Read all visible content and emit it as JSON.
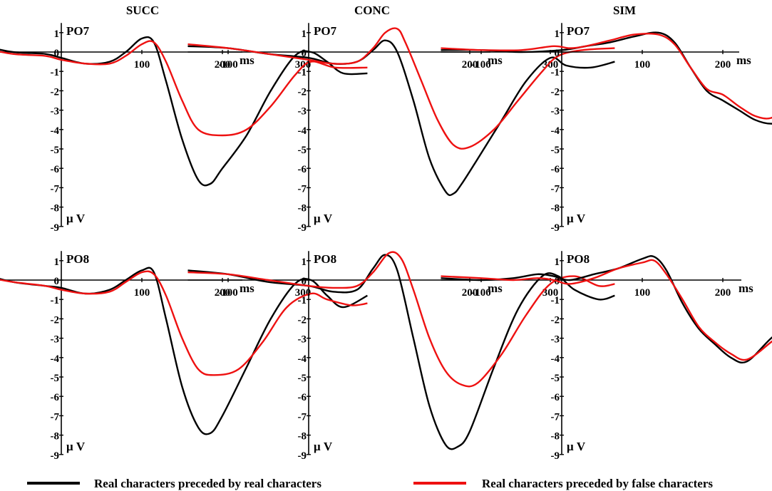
{
  "figure": {
    "column_titles": [
      "SUCC",
      "CONC",
      "SIM"
    ],
    "legend": [
      {
        "label": "Real characters preceded by real characters",
        "color": "#000000"
      },
      {
        "label": "Real characters preceded by false characters",
        "color": "#ee1111"
      }
    ]
  },
  "chart_data": [
    {
      "type": "line",
      "condition": "SUCC",
      "channel": "PO7",
      "xlabel": "ms",
      "ylabel": "μ V",
      "xlim": [
        -150,
        380
      ],
      "ylim": [
        -9,
        1.5
      ],
      "xticks": [
        -100,
        100,
        200,
        300
      ],
      "yticks": [
        1,
        0,
        -1,
        -2,
        -3,
        -4,
        -5,
        -6,
        -7,
        -8,
        -9
      ],
      "series": [
        {
          "color": "#000000",
          "x": [
            -150,
            -100,
            -60,
            -20,
            0,
            30,
            60,
            80,
            100,
            115,
            130,
            150,
            170,
            185,
            200,
            230,
            260,
            290,
            310,
            330,
            350,
            380
          ],
          "y": [
            0.4,
            0.3,
            0.0,
            -0.1,
            -0.3,
            -0.6,
            -0.5,
            0.0,
            0.7,
            0.5,
            -1.5,
            -4.5,
            -6.6,
            -6.8,
            -6.0,
            -4.3,
            -2.0,
            -0.2,
            0.0,
            -0.5,
            -1.1,
            -1.1
          ]
        },
        {
          "color": "#ee1111",
          "x": [
            -150,
            -100,
            -60,
            -20,
            0,
            30,
            60,
            80,
            100,
            115,
            130,
            150,
            170,
            200,
            230,
            260,
            290,
            310,
            340,
            380
          ],
          "y": [
            0.4,
            0.2,
            -0.1,
            -0.2,
            -0.4,
            -0.6,
            -0.6,
            -0.2,
            0.4,
            0.5,
            -0.5,
            -2.5,
            -4.0,
            -4.3,
            -4.0,
            -2.8,
            -1.2,
            -0.5,
            -0.8,
            -0.8
          ]
        }
      ]
    },
    {
      "type": "line",
      "condition": "CONC",
      "channel": "PO7",
      "xlabel": "ms",
      "ylabel": "μ V",
      "xlim": [
        -150,
        380
      ],
      "ylim": [
        -9,
        1.5
      ],
      "xticks": [
        -100,
        200,
        300
      ],
      "yticks": [
        1,
        0,
        -1,
        -2,
        -3,
        -4,
        -5,
        -6,
        -7,
        -8,
        -9
      ],
      "series": [
        {
          "color": "#000000",
          "x": [
            -150,
            -100,
            -50,
            0,
            30,
            60,
            80,
            95,
            110,
            130,
            150,
            170,
            180,
            190,
            210,
            240,
            270,
            300,
            320,
            350,
            380
          ],
          "y": [
            0.3,
            0.2,
            -0.1,
            -0.3,
            -0.6,
            -0.5,
            0.1,
            0.6,
            0.0,
            -2.5,
            -5.5,
            -7.2,
            -7.3,
            -6.8,
            -5.5,
            -3.5,
            -1.5,
            -0.3,
            -0.7,
            -0.8,
            -0.5
          ]
        },
        {
          "color": "#ee1111",
          "x": [
            -150,
            -100,
            -50,
            0,
            30,
            60,
            80,
            95,
            110,
            120,
            140,
            160,
            180,
            200,
            230,
            260,
            290,
            310,
            340,
            380
          ],
          "y": [
            0.4,
            0.2,
            -0.1,
            -0.4,
            -0.6,
            -0.5,
            0.2,
            1.0,
            1.2,
            0.5,
            -1.5,
            -3.5,
            -4.8,
            -4.9,
            -4.0,
            -2.5,
            -1.0,
            -0.2,
            0.1,
            0.2
          ]
        }
      ]
    },
    {
      "type": "line",
      "condition": "SIM",
      "channel": "PO7",
      "xlabel": "ms",
      "ylabel": "μ V",
      "xlim": [
        -150,
        380
      ],
      "ylim": [
        -9,
        1.5
      ],
      "xticks": [
        -100,
        100,
        200,
        300
      ],
      "yticks": [
        1,
        0,
        -1,
        -2,
        -3,
        -4,
        -5,
        -6,
        -7,
        -8,
        -9
      ],
      "series": [
        {
          "color": "#000000",
          "x": [
            -150,
            -100,
            -50,
            0,
            30,
            60,
            90,
            120,
            140,
            160,
            180,
            200,
            220,
            240,
            260,
            280,
            310,
            340,
            370
          ],
          "y": [
            0.1,
            0.1,
            0.0,
            0.1,
            0.3,
            0.5,
            0.8,
            1.0,
            0.5,
            -0.8,
            -2.0,
            -2.5,
            -3.0,
            -3.5,
            -3.7,
            -3.5,
            -2.0,
            -0.5,
            0.2
          ]
        },
        {
          "color": "#ee1111",
          "x": [
            -150,
            -100,
            -50,
            -10,
            10,
            30,
            60,
            90,
            120,
            140,
            160,
            180,
            200,
            220,
            240,
            260,
            280,
            310,
            340,
            370
          ],
          "y": [
            0.2,
            0.1,
            0.1,
            0.3,
            0.2,
            0.3,
            0.6,
            0.9,
            0.9,
            0.4,
            -0.8,
            -1.9,
            -2.2,
            -2.8,
            -3.3,
            -3.4,
            -2.8,
            -1.6,
            -0.3,
            0.2
          ]
        }
      ]
    },
    {
      "type": "line",
      "condition": "SUCC",
      "channel": "PO8",
      "xlabel": "ms",
      "ylabel": "μ V",
      "xlim": [
        -150,
        380
      ],
      "ylim": [
        -9,
        1.5
      ],
      "xticks": [
        -100,
        100,
        200,
        300
      ],
      "yticks": [
        1,
        0,
        -1,
        -2,
        -3,
        -4,
        -5,
        -6,
        -7,
        -8,
        -9
      ],
      "series": [
        {
          "color": "#000000",
          "x": [
            -150,
            -100,
            -60,
            -20,
            0,
            30,
            60,
            80,
            100,
            115,
            130,
            150,
            170,
            185,
            200,
            230,
            260,
            290,
            310,
            330,
            350,
            380
          ],
          "y": [
            0.5,
            0.3,
            -0.1,
            -0.3,
            -0.4,
            -0.7,
            -0.5,
            0.0,
            0.5,
            0.4,
            -2.0,
            -5.5,
            -7.6,
            -7.9,
            -7.0,
            -4.5,
            -2.0,
            -0.2,
            0.0,
            -0.8,
            -1.4,
            -0.8
          ]
        },
        {
          "color": "#ee1111",
          "x": [
            -150,
            -100,
            -60,
            -20,
            0,
            30,
            60,
            80,
            100,
            115,
            130,
            150,
            170,
            190,
            220,
            250,
            280,
            310,
            330,
            360,
            380
          ],
          "y": [
            0.5,
            0.2,
            -0.1,
            -0.3,
            -0.5,
            -0.7,
            -0.6,
            -0.1,
            0.4,
            0.3,
            -0.8,
            -3.0,
            -4.6,
            -4.9,
            -4.6,
            -3.2,
            -1.4,
            -0.7,
            -1.0,
            -1.3,
            -1.2
          ]
        }
      ]
    },
    {
      "type": "line",
      "condition": "CONC",
      "channel": "PO8",
      "xlabel": "ms",
      "ylabel": "μ V",
      "xlim": [
        -150,
        380
      ],
      "ylim": [
        -9,
        1.5
      ],
      "xticks": [
        -100,
        200,
        300
      ],
      "yticks": [
        1,
        0,
        -1,
        -2,
        -3,
        -4,
        -5,
        -6,
        -7,
        -8,
        -9
      ],
      "series": [
        {
          "color": "#000000",
          "x": [
            -150,
            -100,
            -50,
            0,
            30,
            60,
            80,
            95,
            110,
            130,
            150,
            170,
            185,
            200,
            230,
            260,
            290,
            310,
            330,
            360,
            380
          ],
          "y": [
            0.5,
            0.3,
            -0.1,
            -0.3,
            -0.6,
            -0.5,
            0.6,
            1.3,
            0.5,
            -3.0,
            -6.5,
            -8.5,
            -8.6,
            -7.8,
            -4.5,
            -1.5,
            0.2,
            0.2,
            -0.5,
            -1.0,
            -0.8
          ]
        },
        {
          "color": "#ee1111",
          "x": [
            -150,
            -100,
            -50,
            0,
            30,
            60,
            80,
            100,
            115,
            130,
            150,
            170,
            190,
            210,
            240,
            270,
            300,
            330,
            360,
            380
          ],
          "y": [
            0.4,
            0.3,
            0.0,
            -0.3,
            -0.4,
            -0.3,
            0.4,
            1.4,
            1.1,
            -0.5,
            -3.0,
            -4.7,
            -5.4,
            -5.3,
            -3.8,
            -1.8,
            -0.2,
            0.2,
            -0.3,
            -0.2
          ]
        }
      ]
    },
    {
      "type": "line",
      "condition": "SIM",
      "channel": "PO8",
      "xlabel": "ms",
      "ylabel": "μ V",
      "xlim": [
        -150,
        380
      ],
      "ylim": [
        -9,
        1.5
      ],
      "xticks": [
        -100,
        100,
        200,
        300
      ],
      "yticks": [
        1,
        0,
        -1,
        -2,
        -3,
        -4,
        -5,
        -6,
        -7,
        -8,
        -9
      ],
      "series": [
        {
          "color": "#000000",
          "x": [
            -150,
            -100,
            -60,
            -30,
            -10,
            10,
            40,
            70,
            100,
            115,
            130,
            150,
            170,
            190,
            210,
            230,
            260,
            290,
            320,
            350,
            380
          ],
          "y": [
            0.1,
            0.0,
            0.1,
            0.3,
            0.2,
            0.0,
            0.3,
            0.6,
            1.1,
            1.2,
            0.5,
            -1.2,
            -2.5,
            -3.3,
            -4.0,
            -4.2,
            -3.0,
            -2.0,
            -1.0,
            -0.2,
            0.5
          ]
        },
        {
          "color": "#ee1111",
          "x": [
            -150,
            -100,
            -60,
            -30,
            -10,
            10,
            40,
            70,
            100,
            115,
            130,
            150,
            170,
            190,
            210,
            230,
            260,
            290,
            320,
            350,
            380
          ],
          "y": [
            0.2,
            0.1,
            0.0,
            0.1,
            0.0,
            -0.2,
            0.1,
            0.6,
            0.9,
            1.0,
            0.3,
            -1.0,
            -2.4,
            -3.2,
            -3.8,
            -4.1,
            -3.2,
            -2.2,
            -1.2,
            -0.4,
            0.5
          ]
        }
      ]
    }
  ]
}
